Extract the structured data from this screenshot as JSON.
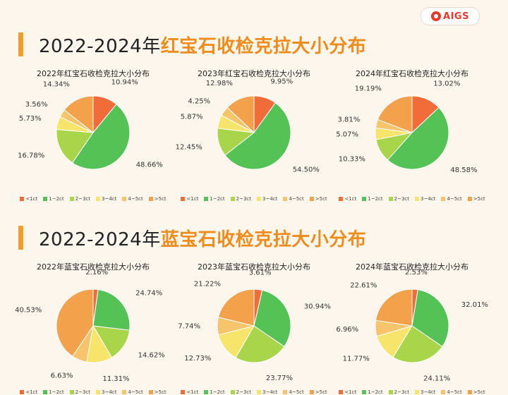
{
  "brand": {
    "logo_text": "AIGS"
  },
  "sections": [
    {
      "title_prefix": "2022-2024年",
      "title_highlight": "红宝石收检克拉大小分布"
    },
    {
      "title_prefix": "2022-2024年",
      "title_highlight": "蓝宝石收检克拉大小分布"
    }
  ],
  "palette": [
    "#f26c3a",
    "#55c256",
    "#a9d54a",
    "#f7e46a",
    "#f5c46b",
    "#f4a14b"
  ],
  "chart_data": [
    {
      "type": "pie",
      "title": "2022年红宝石收检克拉大小分布",
      "categories": [
        "<1ct",
        "1~2ct",
        "2~3ct",
        "3~4ct",
        "4~5ct",
        ">5ct"
      ],
      "values": [
        10.94,
        48.66,
        16.78,
        5.73,
        3.56,
        14.34
      ],
      "labels": [
        "10.94%",
        "48.66%",
        "16.78%",
        "5.73%",
        "3.56%",
        "14.34%"
      ],
      "legend": "bottom"
    },
    {
      "type": "pie",
      "title": "2023年红宝石收检克拉大小分布",
      "categories": [
        "<1ct",
        "1~2ct",
        "2~3ct",
        "3~4ct",
        "4~5ct",
        ">5ct"
      ],
      "values": [
        9.95,
        54.5,
        12.45,
        5.87,
        4.25,
        12.98
      ],
      "labels": [
        "9.95%",
        "54.50%",
        "12.45%",
        "5.87%",
        "4.25%",
        "12.98%"
      ],
      "legend": "bottom"
    },
    {
      "type": "pie",
      "title": "2024年红宝石收检克拉大小分布",
      "categories": [
        "<1ct",
        "1~2ct",
        "2~3ct",
        "3~4ct",
        "4~5ct",
        ">5ct"
      ],
      "values": [
        13.02,
        48.58,
        10.33,
        5.07,
        3.81,
        19.19
      ],
      "labels": [
        "13.02%",
        "48.58%",
        "10.33%",
        "5.07%",
        "3.81%",
        "19.19%"
      ],
      "legend": "bottom"
    },
    {
      "type": "pie",
      "title": "2022年蓝宝石收检克拉大小分布",
      "categories": [
        "<1ct",
        "1~2ct",
        "2~3ct",
        "3~4ct",
        "4~5ct",
        ">5ct"
      ],
      "values": [
        2.16,
        24.74,
        14.62,
        11.31,
        6.63,
        40.53
      ],
      "labels": [
        "2.16%",
        "24.74%",
        "14.62%",
        "11.31%",
        "6.63%",
        "40.53%"
      ],
      "legend": "bottom"
    },
    {
      "type": "pie",
      "title": "2023年蓝宝石收检克拉大小分布",
      "categories": [
        "<1ct",
        "1~2ct",
        "2~3ct",
        "3~4ct",
        "4~5ct",
        ">5ct"
      ],
      "values": [
        3.61,
        30.94,
        23.77,
        12.73,
        7.74,
        21.22
      ],
      "labels": [
        "3.61%",
        "30.94%",
        "23.77%",
        "12.73%",
        "7.74%",
        "21.22%"
      ],
      "legend": "bottom"
    },
    {
      "type": "pie",
      "title": "2024年蓝宝石收检克拉大小分布",
      "categories": [
        "<1ct",
        "1~2ct",
        "2~3ct",
        "3~4ct",
        "4~5ct",
        ">5ct"
      ],
      "values": [
        2.53,
        32.01,
        24.11,
        11.77,
        6.96,
        22.61
      ],
      "labels": [
        "2.53%",
        "32.01%",
        "24.11%",
        "11.77%",
        "6.96%",
        "22.61%"
      ],
      "legend": "bottom"
    }
  ]
}
